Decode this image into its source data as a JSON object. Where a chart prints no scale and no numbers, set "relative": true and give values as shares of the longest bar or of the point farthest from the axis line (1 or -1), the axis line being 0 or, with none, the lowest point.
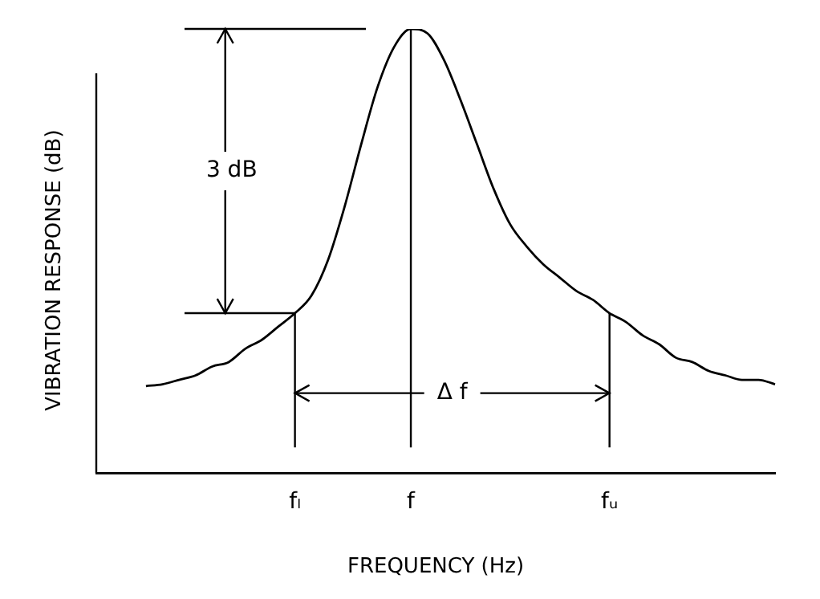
{
  "chart_data": {
    "type": "line",
    "relative": true,
    "xlabel": "FREQUENCY (Hz)",
    "ylabel": "VIBRATION RESPONSE (dB)",
    "categories": [
      null,
      null,
      null,
      null,
      null,
      null,
      null,
      null,
      null,
      null,
      null,
      null,
      "fₗ",
      null,
      null,
      null,
      null,
      null,
      null,
      "f",
      null,
      null,
      null,
      null,
      null,
      null,
      null,
      null,
      null,
      null,
      null,
      "fᵤ",
      null,
      null,
      null,
      null,
      null,
      null,
      null,
      null,
      null,
      null
    ],
    "series": [
      {
        "color": "#000000",
        "values": [
          null,
          null,
          null,
          0.196,
          0.2,
          0.21,
          0.22,
          0.24,
          0.25,
          0.28,
          0.3,
          0.33,
          0.36,
          0.4,
          0.48,
          0.6,
          0.74,
          0.87,
          0.96,
          1,
          0.99,
          0.93,
          0.84,
          0.74,
          0.64,
          0.56,
          0.51,
          0.47,
          0.44,
          0.41,
          0.39,
          0.36,
          0.34,
          0.31,
          0.29,
          0.26,
          0.25,
          0.23,
          0.22,
          0.21,
          0.21,
          0.2
        ]
      }
    ],
    "ref_lines": [
      {
        "axis": "x",
        "value": "fₗ"
      },
      {
        "axis": "x",
        "value": "f"
      },
      {
        "axis": "x",
        "value": "fᵤ"
      },
      {
        "axis": "y",
        "value": 1
      },
      {
        "axis": "y",
        "value": 0.36
      }
    ],
    "annotations": [
      "3 dB",
      "Δ f"
    ],
    "marker": "none",
    "line_style": "solid",
    "legend": false,
    "grid": false
  }
}
